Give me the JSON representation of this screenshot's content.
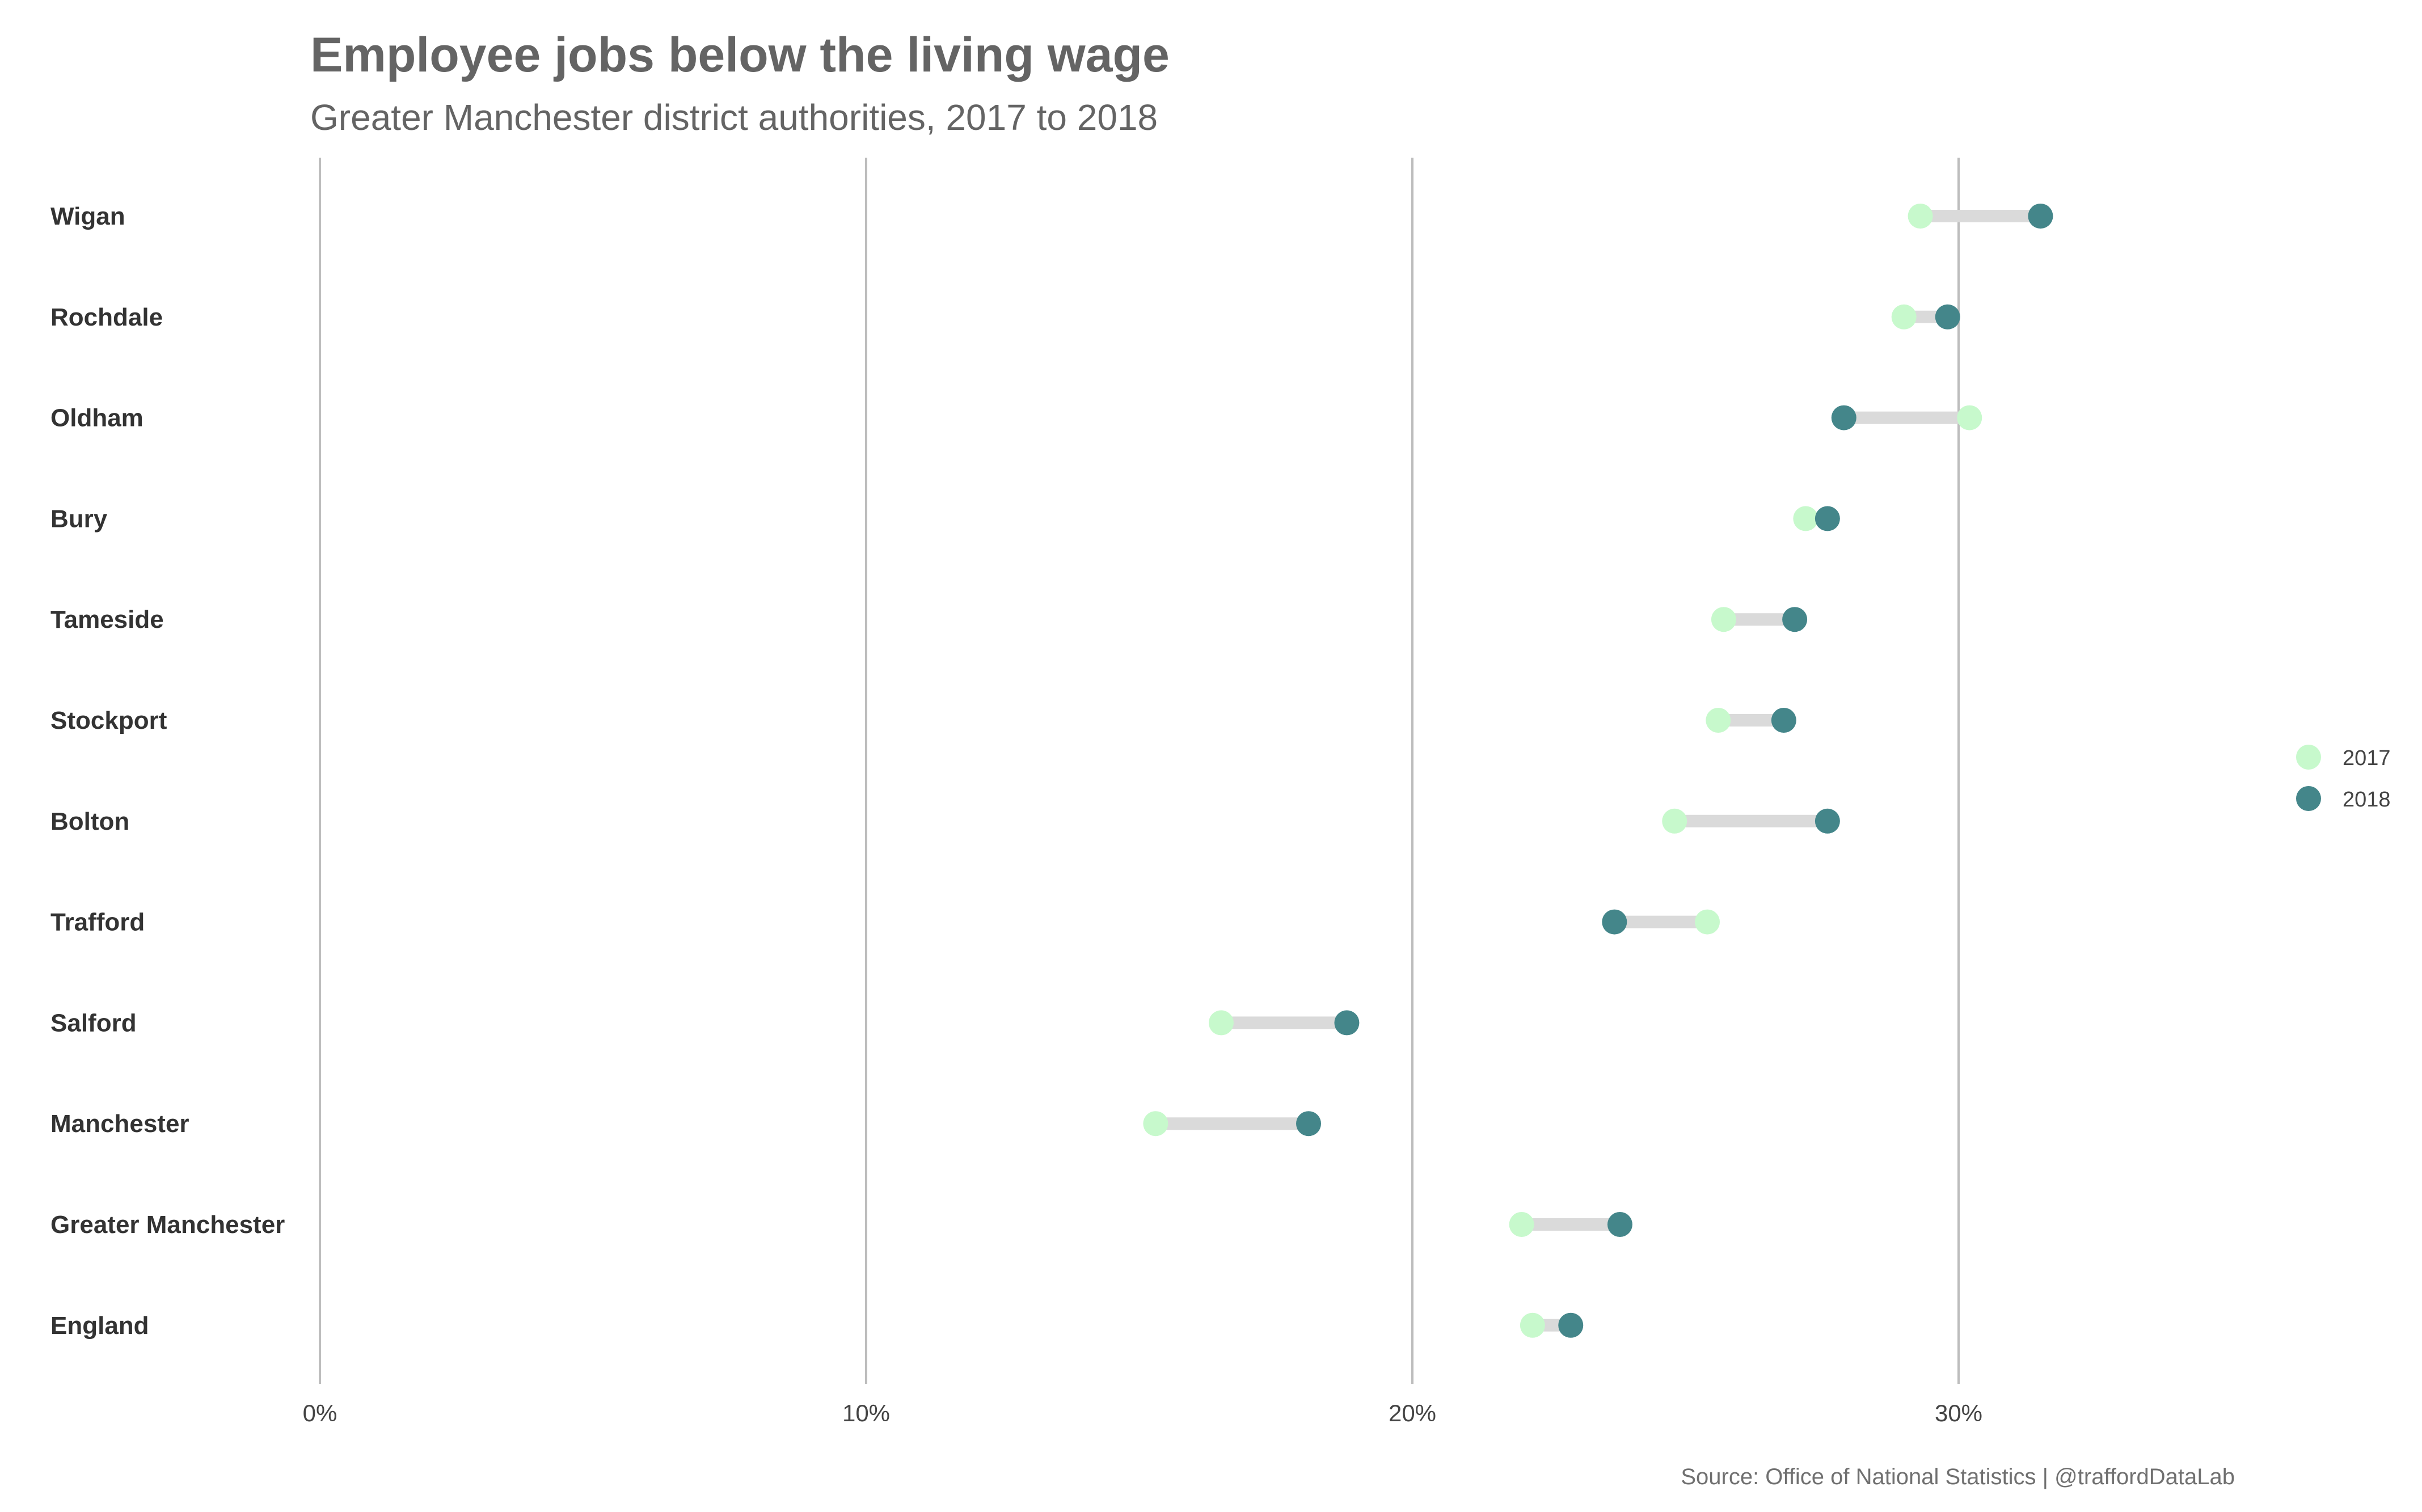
{
  "chart_data": {
    "type": "dumbbell",
    "title": "Employee jobs below the living wage",
    "subtitle": "Greater Manchester district authorities, 2017 to 2018",
    "caption": "Source: Office of National Statistics | @traffordDataLab",
    "xlabel": "",
    "ylabel": "",
    "xlim": [
      0,
      37
    ],
    "xticks": [
      0,
      10,
      20,
      30
    ],
    "xtick_labels": [
      "0%",
      "10%",
      "20%",
      "30%"
    ],
    "grid": "vertical major",
    "legend_position": "right",
    "series": [
      {
        "name": "2017",
        "color": "#c7f9cc"
      },
      {
        "name": "2018",
        "color": "#44868a"
      }
    ],
    "connector_color": "#dadada",
    "categories": [
      "Wigan",
      "Rochdale",
      "Oldham",
      "Bury",
      "Tameside",
      "Stockport",
      "Bolton",
      "Trafford",
      "Salford",
      "Manchester",
      "Greater Manchester",
      "England"
    ],
    "values_2017": [
      29.3,
      29.0,
      30.2,
      27.2,
      25.7,
      25.6,
      24.8,
      25.4,
      16.5,
      15.3,
      22.0,
      22.2
    ],
    "values_2018": [
      31.5,
      29.8,
      27.9,
      27.6,
      27.0,
      26.8,
      27.6,
      23.7,
      18.8,
      18.1,
      23.8,
      22.9
    ]
  }
}
